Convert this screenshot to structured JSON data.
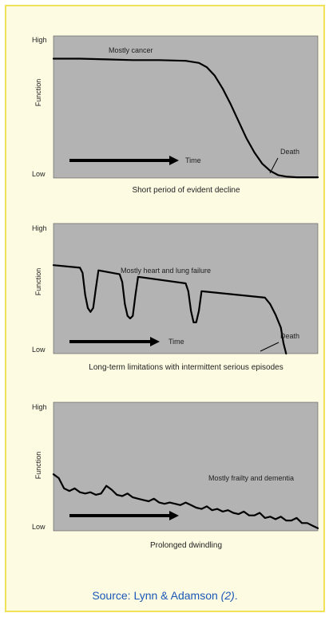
{
  "source": {
    "prefix": "Source: Lynn & Adamson ",
    "ref": "(2)",
    "suffix": "."
  },
  "colors": {
    "panel_background": "#b3b3b3",
    "curve": "#000000",
    "border": "#f0e35a",
    "source_text": "#1a57b7"
  },
  "chart_data": [
    {
      "type": "line",
      "title": "",
      "ylabel": "Function",
      "y_high_label": "High",
      "y_low_label": "Low",
      "time_label": "Time",
      "caption": "Short period of evident decline",
      "annotations": [
        {
          "text": "Mostly cancer"
        },
        {
          "text": "Death"
        }
      ],
      "xlim": [
        0,
        100
      ],
      "ylim": [
        0,
        100
      ],
      "series": [
        {
          "x": [
            0,
            10,
            20,
            30,
            40,
            50,
            55,
            58,
            61,
            64,
            67,
            70,
            73,
            76,
            79,
            82,
            85,
            88,
            92,
            100
          ],
          "y": [
            84,
            84,
            83.5,
            83,
            83,
            82.5,
            81,
            78,
            72,
            63,
            52,
            40,
            28,
            18,
            10,
            5,
            2,
            1,
            0.5,
            0.5
          ]
        }
      ]
    },
    {
      "type": "line",
      "title": "",
      "ylabel": "Function",
      "y_high_label": "High",
      "y_low_label": "Low",
      "time_label": "Time",
      "caption": "Long-term limitations with intermittent serious episodes",
      "annotations": [
        {
          "text": "Mostly heart and lung failure"
        },
        {
          "text": "Death"
        }
      ],
      "xlim": [
        0,
        100
      ],
      "ylim": [
        0,
        100
      ],
      "series": [
        {
          "x": [
            0,
            10,
            11,
            12,
            13,
            14,
            15,
            16,
            17,
            25,
            26,
            27,
            28,
            29,
            30,
            31,
            32,
            50,
            51,
            52,
            53,
            54,
            55,
            56,
            80,
            82,
            84,
            86,
            87,
            88
          ],
          "y": [
            68,
            66,
            62,
            45,
            35,
            32,
            35,
            50,
            64,
            61,
            55,
            38,
            29,
            27,
            29,
            45,
            59,
            54,
            48,
            33,
            24,
            24,
            33,
            48,
            43,
            38,
            30,
            20,
            8,
            0
          ]
        }
      ]
    },
    {
      "type": "line",
      "title": "",
      "ylabel": "Function",
      "y_high_label": "High",
      "y_low_label": "Low",
      "time_label": "",
      "caption": "Prolonged dwindling",
      "annotations": [
        {
          "text": "Mostly frailty and dementia"
        }
      ],
      "xlim": [
        0,
        100
      ],
      "ylim": [
        0,
        100
      ],
      "series": [
        {
          "x": [
            0,
            2,
            4,
            6,
            8,
            10,
            12,
            14,
            16,
            18,
            20,
            22,
            24,
            26,
            28,
            30,
            32,
            34,
            36,
            38,
            40,
            42,
            44,
            46,
            48,
            50,
            52,
            54,
            56,
            58,
            60,
            62,
            64,
            66,
            68,
            70,
            72,
            74,
            76,
            78,
            80,
            82,
            84,
            86,
            88,
            90,
            92,
            94,
            96,
            98,
            100
          ],
          "y": [
            44,
            41,
            33,
            31,
            33,
            30,
            29,
            30,
            28,
            29,
            35,
            32,
            28,
            27,
            29,
            26,
            25,
            24,
            23,
            25,
            22,
            21,
            22,
            21,
            20,
            22,
            20,
            18,
            17,
            19,
            16,
            17,
            15,
            16,
            14,
            13,
            15,
            12,
            12,
            14,
            10,
            11,
            9,
            11,
            8,
            8,
            10,
            6,
            6,
            4,
            2
          ]
        }
      ]
    }
  ]
}
